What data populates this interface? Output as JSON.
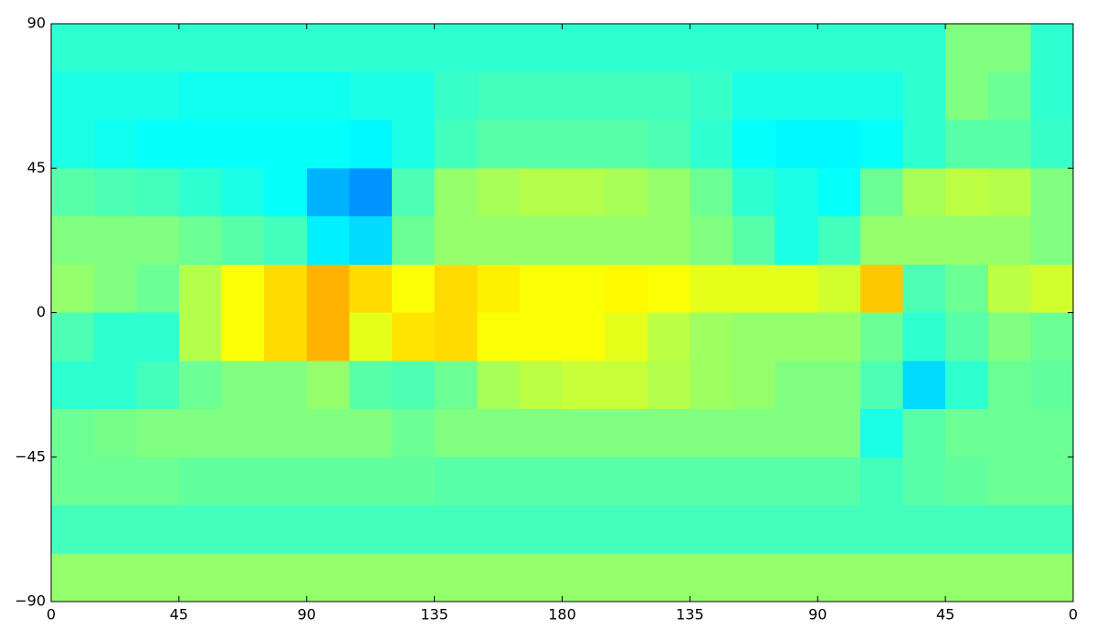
{
  "chart_data": {
    "type": "heatmap",
    "colormap": "jet",
    "xlim": [
      0,
      360
    ],
    "ylim": [
      -90,
      90
    ],
    "xticks": [
      0,
      45,
      90,
      135,
      180,
      {
        "value": 225,
        "label": "135"
      },
      {
        "value": 270,
        "label": "90"
      },
      {
        "value": 315,
        "label": "45"
      },
      {
        "value": 360,
        "label": "0"
      }
    ],
    "yticks": [
      {
        "value": -90,
        "label": "−90"
      },
      {
        "value": -45,
        "label": "−45"
      },
      0,
      45,
      90
    ],
    "values": [
      [
        0.42,
        0.42,
        0.42,
        0.42,
        0.42,
        0.42,
        0.42,
        0.42,
        0.42,
        0.42,
        0.42,
        0.42,
        0.42,
        0.42,
        0.42,
        0.42,
        0.42,
        0.42,
        0.42,
        0.42,
        0.42,
        0.5,
        0.5,
        0.42
      ],
      [
        0.4,
        0.4,
        0.4,
        0.39,
        0.39,
        0.39,
        0.39,
        0.4,
        0.4,
        0.43,
        0.44,
        0.44,
        0.44,
        0.44,
        0.44,
        0.43,
        0.4,
        0.4,
        0.4,
        0.4,
        0.42,
        0.5,
        0.48,
        0.42
      ],
      [
        0.4,
        0.39,
        0.38,
        0.38,
        0.38,
        0.38,
        0.38,
        0.37,
        0.4,
        0.44,
        0.46,
        0.46,
        0.46,
        0.46,
        0.45,
        0.42,
        0.38,
        0.37,
        0.37,
        0.38,
        0.42,
        0.46,
        0.46,
        0.43
      ],
      [
        0.46,
        0.45,
        0.44,
        0.42,
        0.4,
        0.38,
        0.3,
        0.27,
        0.45,
        0.52,
        0.54,
        0.55,
        0.55,
        0.54,
        0.52,
        0.48,
        0.42,
        0.4,
        0.38,
        0.48,
        0.54,
        0.56,
        0.55,
        0.5
      ],
      [
        0.5,
        0.5,
        0.5,
        0.48,
        0.46,
        0.44,
        0.36,
        0.34,
        0.48,
        0.52,
        0.52,
        0.52,
        0.52,
        0.52,
        0.52,
        0.5,
        0.46,
        0.4,
        0.44,
        0.52,
        0.52,
        0.52,
        0.52,
        0.5
      ],
      [
        0.52,
        0.5,
        0.48,
        0.55,
        0.62,
        0.66,
        0.7,
        0.66,
        0.62,
        0.66,
        0.64,
        0.62,
        0.62,
        0.63,
        0.62,
        0.6,
        0.6,
        0.6,
        0.58,
        0.68,
        0.45,
        0.48,
        0.56,
        0.58
      ],
      [
        0.45,
        0.42,
        0.42,
        0.55,
        0.62,
        0.66,
        0.7,
        0.6,
        0.65,
        0.66,
        0.62,
        0.62,
        0.62,
        0.6,
        0.56,
        0.53,
        0.52,
        0.52,
        0.52,
        0.48,
        0.42,
        0.46,
        0.5,
        0.48
      ],
      [
        0.42,
        0.42,
        0.44,
        0.48,
        0.5,
        0.5,
        0.52,
        0.46,
        0.45,
        0.48,
        0.54,
        0.56,
        0.57,
        0.57,
        0.55,
        0.53,
        0.52,
        0.5,
        0.5,
        0.45,
        0.34,
        0.42,
        0.48,
        0.47
      ],
      [
        0.48,
        0.49,
        0.5,
        0.5,
        0.5,
        0.5,
        0.5,
        0.5,
        0.48,
        0.5,
        0.5,
        0.5,
        0.5,
        0.5,
        0.5,
        0.5,
        0.5,
        0.5,
        0.5,
        0.4,
        0.46,
        0.48,
        0.48,
        0.48
      ],
      [
        0.48,
        0.48,
        0.48,
        0.47,
        0.47,
        0.47,
        0.47,
        0.47,
        0.47,
        0.46,
        0.46,
        0.46,
        0.46,
        0.46,
        0.46,
        0.46,
        0.46,
        0.46,
        0.46,
        0.44,
        0.46,
        0.47,
        0.48,
        0.48
      ],
      [
        0.44,
        0.44,
        0.44,
        0.44,
        0.44,
        0.44,
        0.44,
        0.44,
        0.44,
        0.44,
        0.44,
        0.44,
        0.44,
        0.44,
        0.44,
        0.44,
        0.44,
        0.44,
        0.44,
        0.44,
        0.44,
        0.44,
        0.44,
        0.44
      ],
      [
        0.52,
        0.52,
        0.52,
        0.52,
        0.52,
        0.52,
        0.52,
        0.52,
        0.52,
        0.52,
        0.52,
        0.52,
        0.52,
        0.52,
        0.52,
        0.52,
        0.52,
        0.52,
        0.52,
        0.52,
        0.52,
        0.52,
        0.52,
        0.52
      ]
    ]
  }
}
